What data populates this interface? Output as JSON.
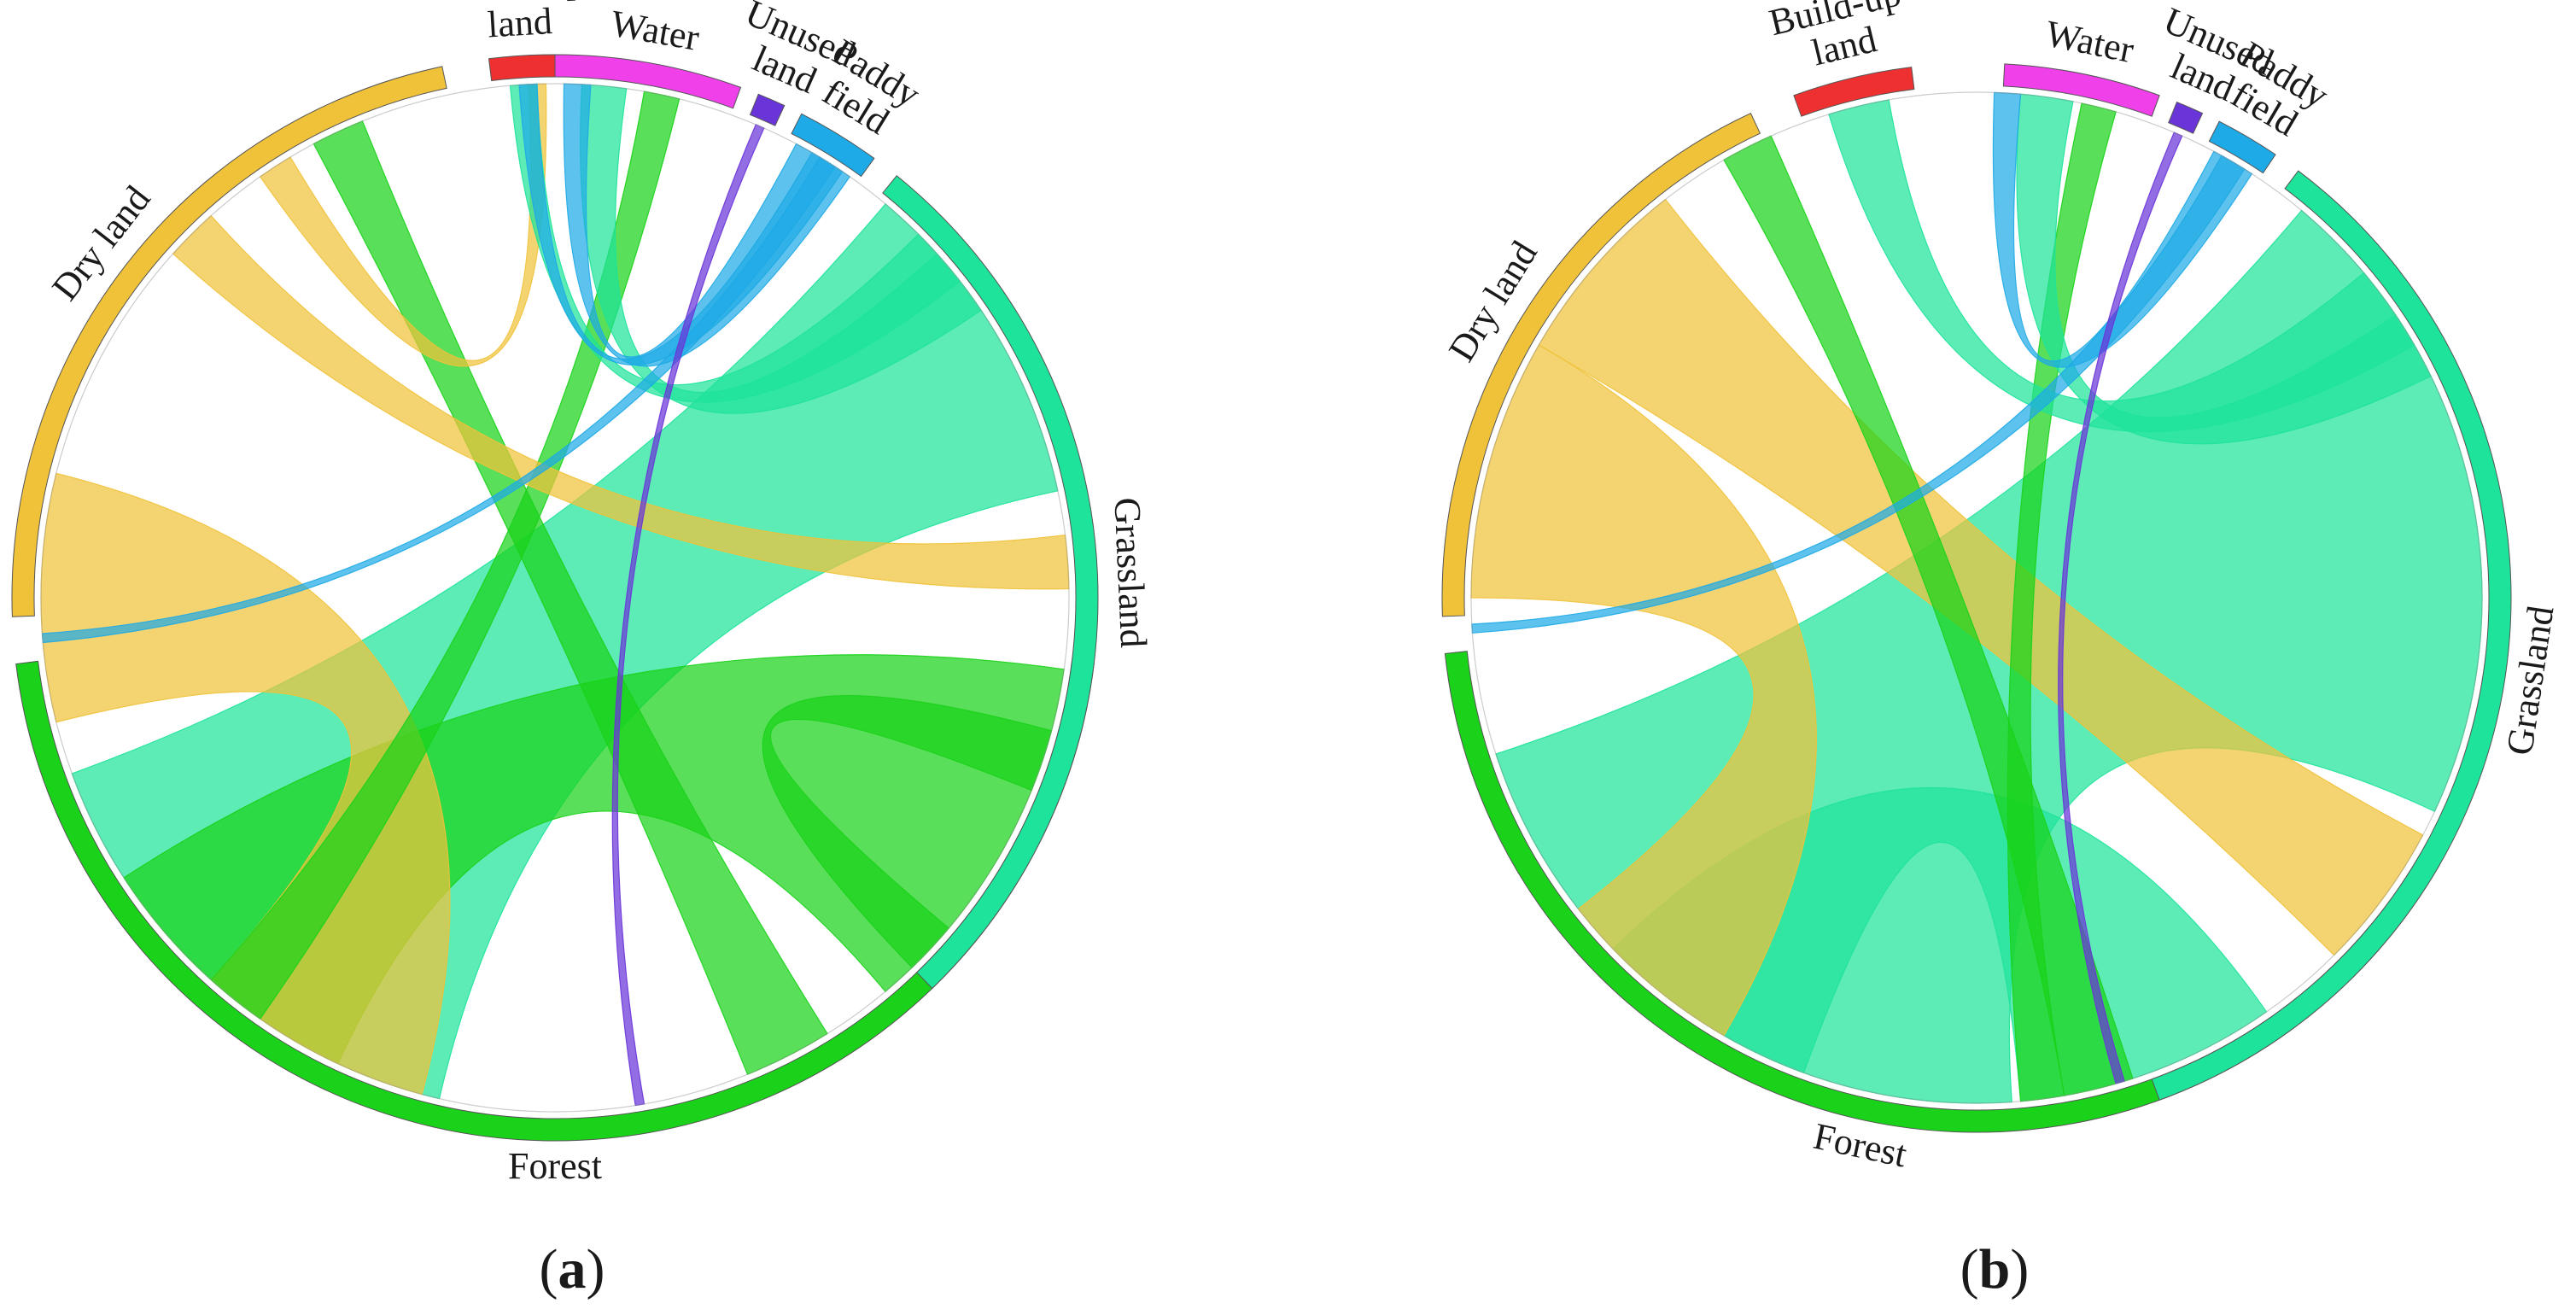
{
  "categories": [
    {
      "key": "forest",
      "label_lines": [
        "Forest"
      ],
      "color": "#19d219"
    },
    {
      "key": "dryland",
      "label_lines": [
        "Dry land"
      ],
      "color": "#f0c23a"
    },
    {
      "key": "buildup",
      "label_lines": [
        "Build-up",
        "land"
      ],
      "color": "#ee3030"
    },
    {
      "key": "water",
      "label_lines": [
        "Water"
      ],
      "color": "#f040ea"
    },
    {
      "key": "unused",
      "label_lines": [
        "Unused",
        "land"
      ],
      "color": "#6a35d8"
    },
    {
      "key": "paddy",
      "label_lines": [
        "Paddy",
        "field"
      ],
      "color": "#1eaae6"
    },
    {
      "key": "grassland",
      "label_lines": [
        "Grassland"
      ],
      "color": "#1ee39a"
    }
  ],
  "panels": [
    {
      "id": "a",
      "label": "a",
      "segments": [
        {
          "key": "forest",
          "start": 97,
          "end": 263
        },
        {
          "key": "dryland",
          "start": 268,
          "end": 348
        },
        {
          "key": "buildup",
          "start": 353,
          "end": 360
        },
        {
          "key": "water",
          "start": 0,
          "end": 20
        },
        {
          "key": "unused",
          "start": 22,
          "end": 25
        },
        {
          "key": "paddy",
          "start": 27,
          "end": 36
        },
        {
          "key": "grassland",
          "start": 39,
          "end": 136
        }
      ],
      "chords": [
        {
          "from": "grassland",
          "a": [
            40,
            78
          ],
          "b": [
            193,
            250
          ],
          "color": "#1ee39a"
        },
        {
          "from": "forest",
          "a": [
            98,
            140
          ],
          "b": [
            205,
            237
          ],
          "color": "#19d219"
        },
        {
          "from": "dryland",
          "a": [
            256,
            284
          ],
          "b": [
            195,
            222
          ],
          "color": "#f0c23a"
        },
        {
          "from": "forest",
          "a": [
            148,
            158
          ],
          "b": [
            332,
            338
          ],
          "color": "#19d219"
        },
        {
          "from": "forest",
          "a": [
            215,
            222
          ],
          "b": [
            10,
            14
          ],
          "color": "#19d219"
        },
        {
          "from": "dryland",
          "a": [
            312,
            318
          ],
          "b": [
            83,
            89
          ],
          "color": "#f0c23a"
        },
        {
          "from": "dryland",
          "a": [
            325,
            329
          ],
          "b": [
            357,
            359
          ],
          "color": "#f0c23a"
        },
        {
          "from": "grassland",
          "a": [
            45,
            52
          ],
          "b": [
            355,
            358
          ],
          "color": "#1ee39a"
        },
        {
          "from": "grassland",
          "a": [
            48,
            56
          ],
          "b": [
            3,
            8
          ],
          "color": "#1ee39a"
        },
        {
          "from": "paddy",
          "a": [
            28,
            35
          ],
          "b": [
            1,
            4
          ],
          "color": "#1eaae6"
        },
        {
          "from": "paddy",
          "a": [
            30,
            34
          ],
          "b": [
            356,
            358
          ],
          "color": "#1eaae6"
        },
        {
          "from": "paddy",
          "a": [
            31,
            33
          ],
          "b": [
            265,
            266
          ],
          "color": "#1eaae6"
        },
        {
          "from": "unused",
          "a": [
            23,
            24
          ],
          "b": [
            170,
            171
          ],
          "color": "#6a35d8"
        },
        {
          "from": "forest",
          "a": [
            130,
            136
          ],
          "b": [
            105,
            112
          ],
          "color": "#19d219"
        }
      ]
    },
    {
      "id": "b",
      "label": "b",
      "segments": [
        {
          "key": "forest",
          "start": 120,
          "end": 264
        },
        {
          "key": "dryland",
          "start": 268,
          "end": 335
        },
        {
          "key": "buildup",
          "start": 340,
          "end": 353
        },
        {
          "key": "water",
          "start": 3,
          "end": 20
        },
        {
          "key": "unused",
          "start": 22,
          "end": 25
        },
        {
          "key": "paddy",
          "start": 27,
          "end": 34
        },
        {
          "key": "grassland",
          "start": 37,
          "end": 160
        }
      ],
      "chords": [
        {
          "from": "grassland",
          "a": [
            40,
            115
          ],
          "b": [
            176,
            252
          ],
          "color": "#1ee39a"
        },
        {
          "from": "forest",
          "a": [
            145,
            175
          ],
          "b": [
            200,
            226
          ],
          "color": "#1ee39a"
        },
        {
          "from": "dryland",
          "a": [
            270,
            300
          ],
          "b": [
            210,
            232
          ],
          "color": "#f0c23a"
        },
        {
          "from": "dryland",
          "a": [
            300,
            322
          ],
          "b": [
            118,
            135
          ],
          "color": "#f0c23a"
        },
        {
          "from": "forest",
          "a": [
            162,
            170
          ],
          "b": [
            330,
            336
          ],
          "color": "#19d219"
        },
        {
          "from": "forest",
          "a": [
            170,
            175
          ],
          "b": [
            12,
            16
          ],
          "color": "#19d219"
        },
        {
          "from": "grassland",
          "a": [
            50,
            60
          ],
          "b": [
            343,
            350
          ],
          "color": "#1ee39a"
        },
        {
          "from": "grassland",
          "a": [
            56,
            64
          ],
          "b": [
            5,
            11
          ],
          "color": "#1ee39a"
        },
        {
          "from": "paddy",
          "a": [
            28,
            33
          ],
          "b": [
            2,
            5
          ],
          "color": "#1eaae6"
        },
        {
          "from": "paddy",
          "a": [
            29,
            32
          ],
          "b": [
            266,
            267
          ],
          "color": "#1eaae6"
        },
        {
          "from": "unused",
          "a": [
            23,
            24
          ],
          "b": [
            163,
            164
          ],
          "color": "#6a35d8"
        }
      ]
    }
  ]
}
